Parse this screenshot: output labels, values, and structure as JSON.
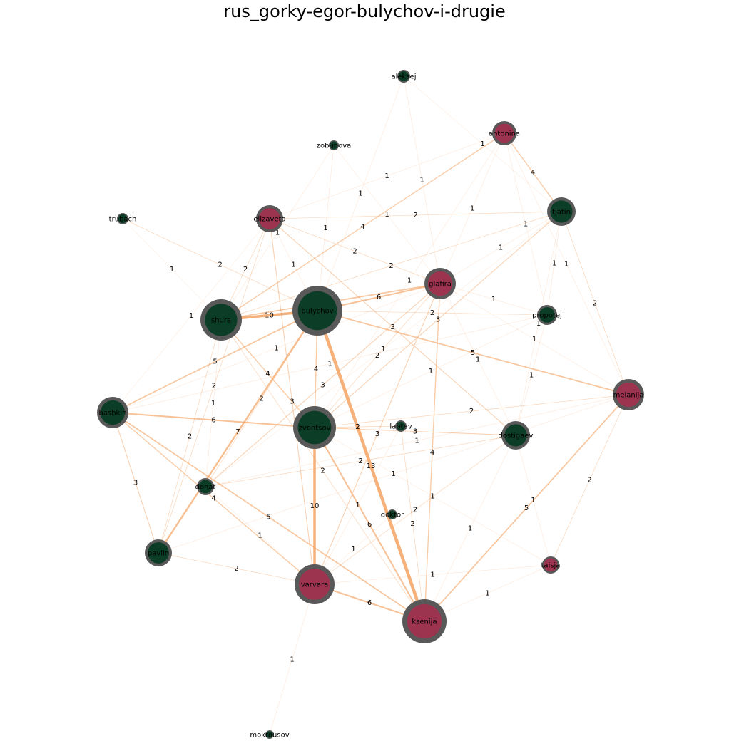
{
  "title": "rus_gorky-egor-bulychov-i-drugie",
  "colors": {
    "male": "#0b3d27",
    "female": "#9c3450",
    "ring": "#595959",
    "edge": "#f4a261"
  },
  "nodes": [
    {
      "id": "aleksej",
      "gender": "male"
    },
    {
      "id": "antonina",
      "gender": "female"
    },
    {
      "id": "zobunova",
      "gender": "male"
    },
    {
      "id": "tjatin",
      "gender": "male"
    },
    {
      "id": "trubach",
      "gender": "male"
    },
    {
      "id": "elizaveta",
      "gender": "female"
    },
    {
      "id": "glafira",
      "gender": "female"
    },
    {
      "id": "bulychov",
      "gender": "male"
    },
    {
      "id": "shura",
      "gender": "male"
    },
    {
      "id": "propotej",
      "gender": "male"
    },
    {
      "id": "melanija",
      "gender": "female"
    },
    {
      "id": "bashkin",
      "gender": "male"
    },
    {
      "id": "zvontsov",
      "gender": "male"
    },
    {
      "id": "laptev",
      "gender": "male"
    },
    {
      "id": "dostigaev",
      "gender": "male"
    },
    {
      "id": "donat",
      "gender": "male"
    },
    {
      "id": "doktor",
      "gender": "male"
    },
    {
      "id": "pavlin",
      "gender": "male"
    },
    {
      "id": "taisja",
      "gender": "female"
    },
    {
      "id": "varvara",
      "gender": "female"
    },
    {
      "id": "ksenija",
      "gender": "female"
    },
    {
      "id": "mokrousov",
      "gender": "male"
    }
  ],
  "edges": [
    {
      "s": "bulychov",
      "t": "ksenija",
      "w": 13
    },
    {
      "s": "bulychov",
      "t": "shura",
      "w": 10
    },
    {
      "s": "zvontsov",
      "t": "varvara",
      "w": 10
    },
    {
      "s": "bulychov",
      "t": "pavlin",
      "w": 7
    },
    {
      "s": "bulychov",
      "t": "glafira",
      "w": 6
    },
    {
      "s": "bashkin",
      "t": "zvontsov",
      "w": 6
    },
    {
      "s": "varvara",
      "t": "ksenija",
      "w": 6
    },
    {
      "s": "zvontsov",
      "t": "ksenija",
      "w": 6
    },
    {
      "s": "shura",
      "t": "glafira",
      "w": 5
    },
    {
      "s": "bulychov",
      "t": "melanija",
      "w": 5
    },
    {
      "s": "bashkin",
      "t": "bulychov",
      "w": 5
    },
    {
      "s": "bashkin",
      "t": "ksenija",
      "w": 5
    },
    {
      "s": "melanija",
      "t": "ksenija",
      "w": 5
    },
    {
      "s": "antonina",
      "t": "tjatin",
      "w": 4
    },
    {
      "s": "shura",
      "t": "antonina",
      "w": 4
    },
    {
      "s": "shura",
      "t": "zvontsov",
      "w": 4
    },
    {
      "s": "bulychov",
      "t": "zvontsov",
      "w": 4
    },
    {
      "s": "glafira",
      "t": "ksenija",
      "w": 4
    },
    {
      "s": "bashkin",
      "t": "varvara",
      "w": 4
    },
    {
      "s": "bashkin",
      "t": "pavlin",
      "w": 3
    },
    {
      "s": "elizaveta",
      "t": "dostigaev",
      "w": 3
    },
    {
      "s": "glafira",
      "t": "varvara",
      "w": 3
    },
    {
      "s": "glafira",
      "t": "donat",
      "w": 3
    },
    {
      "s": "zvontsov",
      "t": "dostigaev",
      "w": 3
    },
    {
      "s": "elizaveta",
      "t": "varvara",
      "w": 3
    },
    {
      "s": "zvontsov",
      "t": "tjatin",
      "w": 3
    },
    {
      "s": "shura",
      "t": "tjatin",
      "w": 2
    },
    {
      "s": "trubach",
      "t": "bulychov",
      "w": 2
    },
    {
      "s": "elizaveta",
      "t": "shura",
      "w": 2
    },
    {
      "s": "elizaveta",
      "t": "glafira",
      "w": 2
    },
    {
      "s": "elizaveta",
      "t": "pavlin",
      "w": 2
    },
    {
      "s": "bulychov",
      "t": "propotej",
      "w": 2
    },
    {
      "s": "bulychov",
      "t": "donat",
      "w": 2
    },
    {
      "s": "shura",
      "t": "ksenija",
      "w": 2
    },
    {
      "s": "elizaveta",
      "t": "tjatin",
      "w": 2
    },
    {
      "s": "zvontsov",
      "t": "melanija",
      "w": 2
    },
    {
      "s": "tjatin",
      "t": "melanija",
      "w": 2
    },
    {
      "s": "zvontsov",
      "t": "laptev",
      "w": 2
    },
    {
      "s": "melanija",
      "t": "taisja",
      "w": 2
    },
    {
      "s": "pavlin",
      "t": "varvara",
      "w": 2
    },
    {
      "s": "glafira",
      "t": "zvontsov",
      "w": 2
    },
    {
      "s": "donat",
      "t": "dostigaev",
      "w": 2
    },
    {
      "s": "dostigaev",
      "t": "varvara",
      "w": 2
    },
    {
      "s": "laptev",
      "t": "ksenija",
      "w": 2
    },
    {
      "s": "shura",
      "t": "pavlin",
      "w": 2
    },
    {
      "s": "aleksej",
      "t": "tjatin",
      "w": 1
    },
    {
      "s": "aleksej",
      "t": "bulychov",
      "w": 1
    },
    {
      "s": "aleksej",
      "t": "glafira",
      "w": 1
    },
    {
      "s": "antonina",
      "t": "elizaveta",
      "w": 1
    },
    {
      "s": "antonina",
      "t": "glafira",
      "w": 1
    },
    {
      "s": "antonina",
      "t": "melanija",
      "w": 1
    },
    {
      "s": "antonina",
      "t": "propotej",
      "w": 1
    },
    {
      "s": "antonina",
      "t": "zvontsov",
      "w": 1
    },
    {
      "s": "zobunova",
      "t": "bulychov",
      "w": 1
    },
    {
      "s": "zobunova",
      "t": "shura",
      "w": 1
    },
    {
      "s": "zobunova",
      "t": "glafira",
      "w": 1
    },
    {
      "s": "trubach",
      "t": "shura",
      "w": 1
    },
    {
      "s": "tjatin",
      "t": "glafira",
      "w": 1
    },
    {
      "s": "tjatin",
      "t": "propotej",
      "w": 1
    },
    {
      "s": "tjatin",
      "t": "dostigaev",
      "w": 1
    },
    {
      "s": "tjatin",
      "t": "donat",
      "w": 1
    },
    {
      "s": "elizaveta",
      "t": "bulychov",
      "w": 1
    },
    {
      "s": "glafira",
      "t": "propotej",
      "w": 1
    },
    {
      "s": "glafira",
      "t": "melanija",
      "w": 1
    },
    {
      "s": "glafira",
      "t": "dostigaev",
      "w": 1
    },
    {
      "s": "propotej",
      "t": "bashkin",
      "w": 1
    },
    {
      "s": "propotej",
      "t": "dostigaev",
      "w": 1
    },
    {
      "s": "propotej",
      "t": "zvontsov",
      "w": 1
    },
    {
      "s": "shura",
      "t": "donat",
      "w": 1
    },
    {
      "s": "bashkin",
      "t": "elizaveta",
      "w": 1
    },
    {
      "s": "bashkin",
      "t": "glafira",
      "w": 1
    },
    {
      "s": "melanija",
      "t": "donat",
      "w": 1
    },
    {
      "s": "melanija",
      "t": "pavlin",
      "w": 1
    },
    {
      "s": "dostigaev",
      "t": "ksenija",
      "w": 1
    },
    {
      "s": "dostigaev",
      "t": "taisja",
      "w": 1
    },
    {
      "s": "taisja",
      "t": "varvara",
      "w": 1
    },
    {
      "s": "taisja",
      "t": "ksenija",
      "w": 1
    },
    {
      "s": "varvara",
      "t": "mokrousov",
      "w": 1
    },
    {
      "s": "doktor",
      "t": "varvara",
      "w": 1
    },
    {
      "s": "laptev",
      "t": "varvara",
      "w": 1
    },
    {
      "s": "donat",
      "t": "varvara",
      "w": 1
    },
    {
      "s": "zvontsov",
      "t": "taisja",
      "w": 1
    }
  ]
}
